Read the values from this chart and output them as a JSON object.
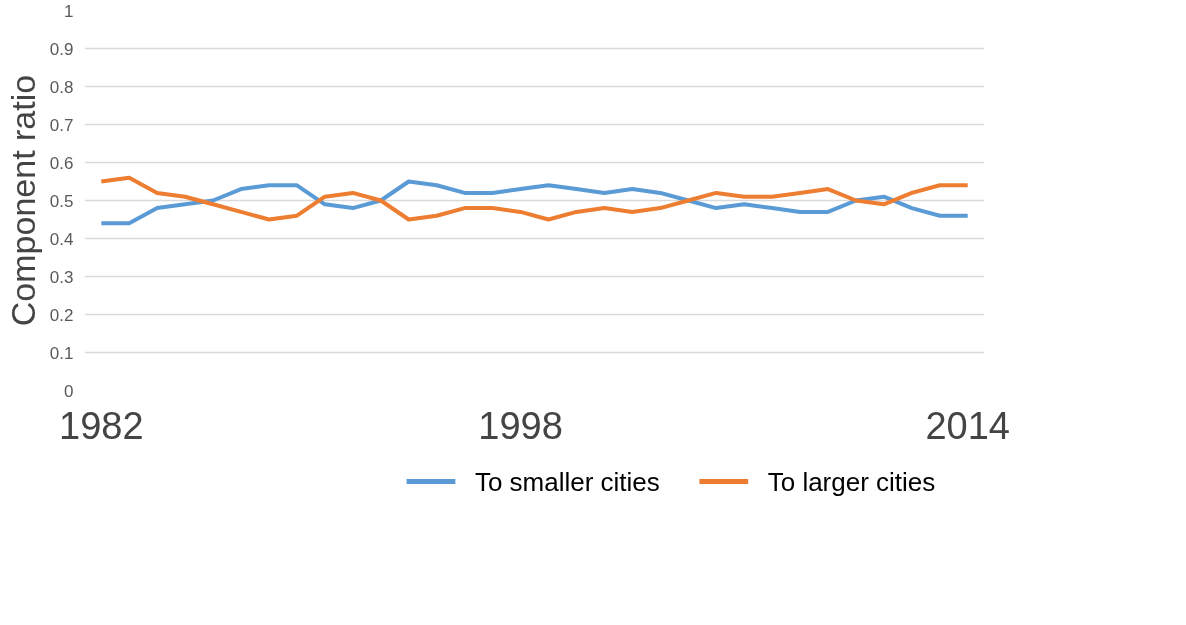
{
  "chart_data": {
    "type": "line",
    "ylabel": "Component ratio",
    "categories": [
      "1982",
      null,
      null,
      null,
      null,
      null,
      null,
      null,
      null,
      null,
      null,
      null,
      null,
      null,
      null,
      "1998",
      null,
      null,
      null,
      null,
      null,
      null,
      null,
      null,
      null,
      null,
      null,
      null,
      null,
      null,
      null,
      "2014"
    ],
    "series": [
      {
        "name": "To smaller cities",
        "color": "#5b9bd5",
        "values": [
          0.44,
          0.44,
          0.48,
          0.49,
          0.5,
          0.53,
          0.54,
          0.54,
          0.49,
          0.48,
          0.5,
          0.55,
          0.54,
          0.52,
          0.52,
          0.53,
          0.54,
          0.53,
          0.52,
          0.53,
          0.52,
          0.5,
          0.48,
          0.49,
          0.48,
          0.47,
          0.47,
          0.5,
          0.51,
          0.48,
          0.46,
          0.46
        ]
      },
      {
        "name": "To larger cities",
        "color": "#ed7d31",
        "values": [
          0.55,
          0.56,
          0.52,
          0.51,
          0.49,
          0.47,
          0.45,
          0.46,
          0.51,
          0.52,
          0.5,
          0.45,
          0.46,
          0.48,
          0.48,
          0.47,
          0.45,
          0.47,
          0.48,
          0.47,
          0.48,
          0.5,
          0.52,
          0.51,
          0.51,
          0.52,
          0.53,
          0.5,
          0.49,
          0.52,
          0.54,
          0.54
        ]
      }
    ],
    "ylim": [
      0,
      1
    ],
    "yticks": [
      0,
      0.1,
      0.2,
      0.3,
      0.4,
      0.5,
      0.6,
      0.7,
      0.8,
      0.9,
      1
    ],
    "grid": "y",
    "legend": "bottom",
    "line_style": "solid",
    "marker": "none"
  }
}
